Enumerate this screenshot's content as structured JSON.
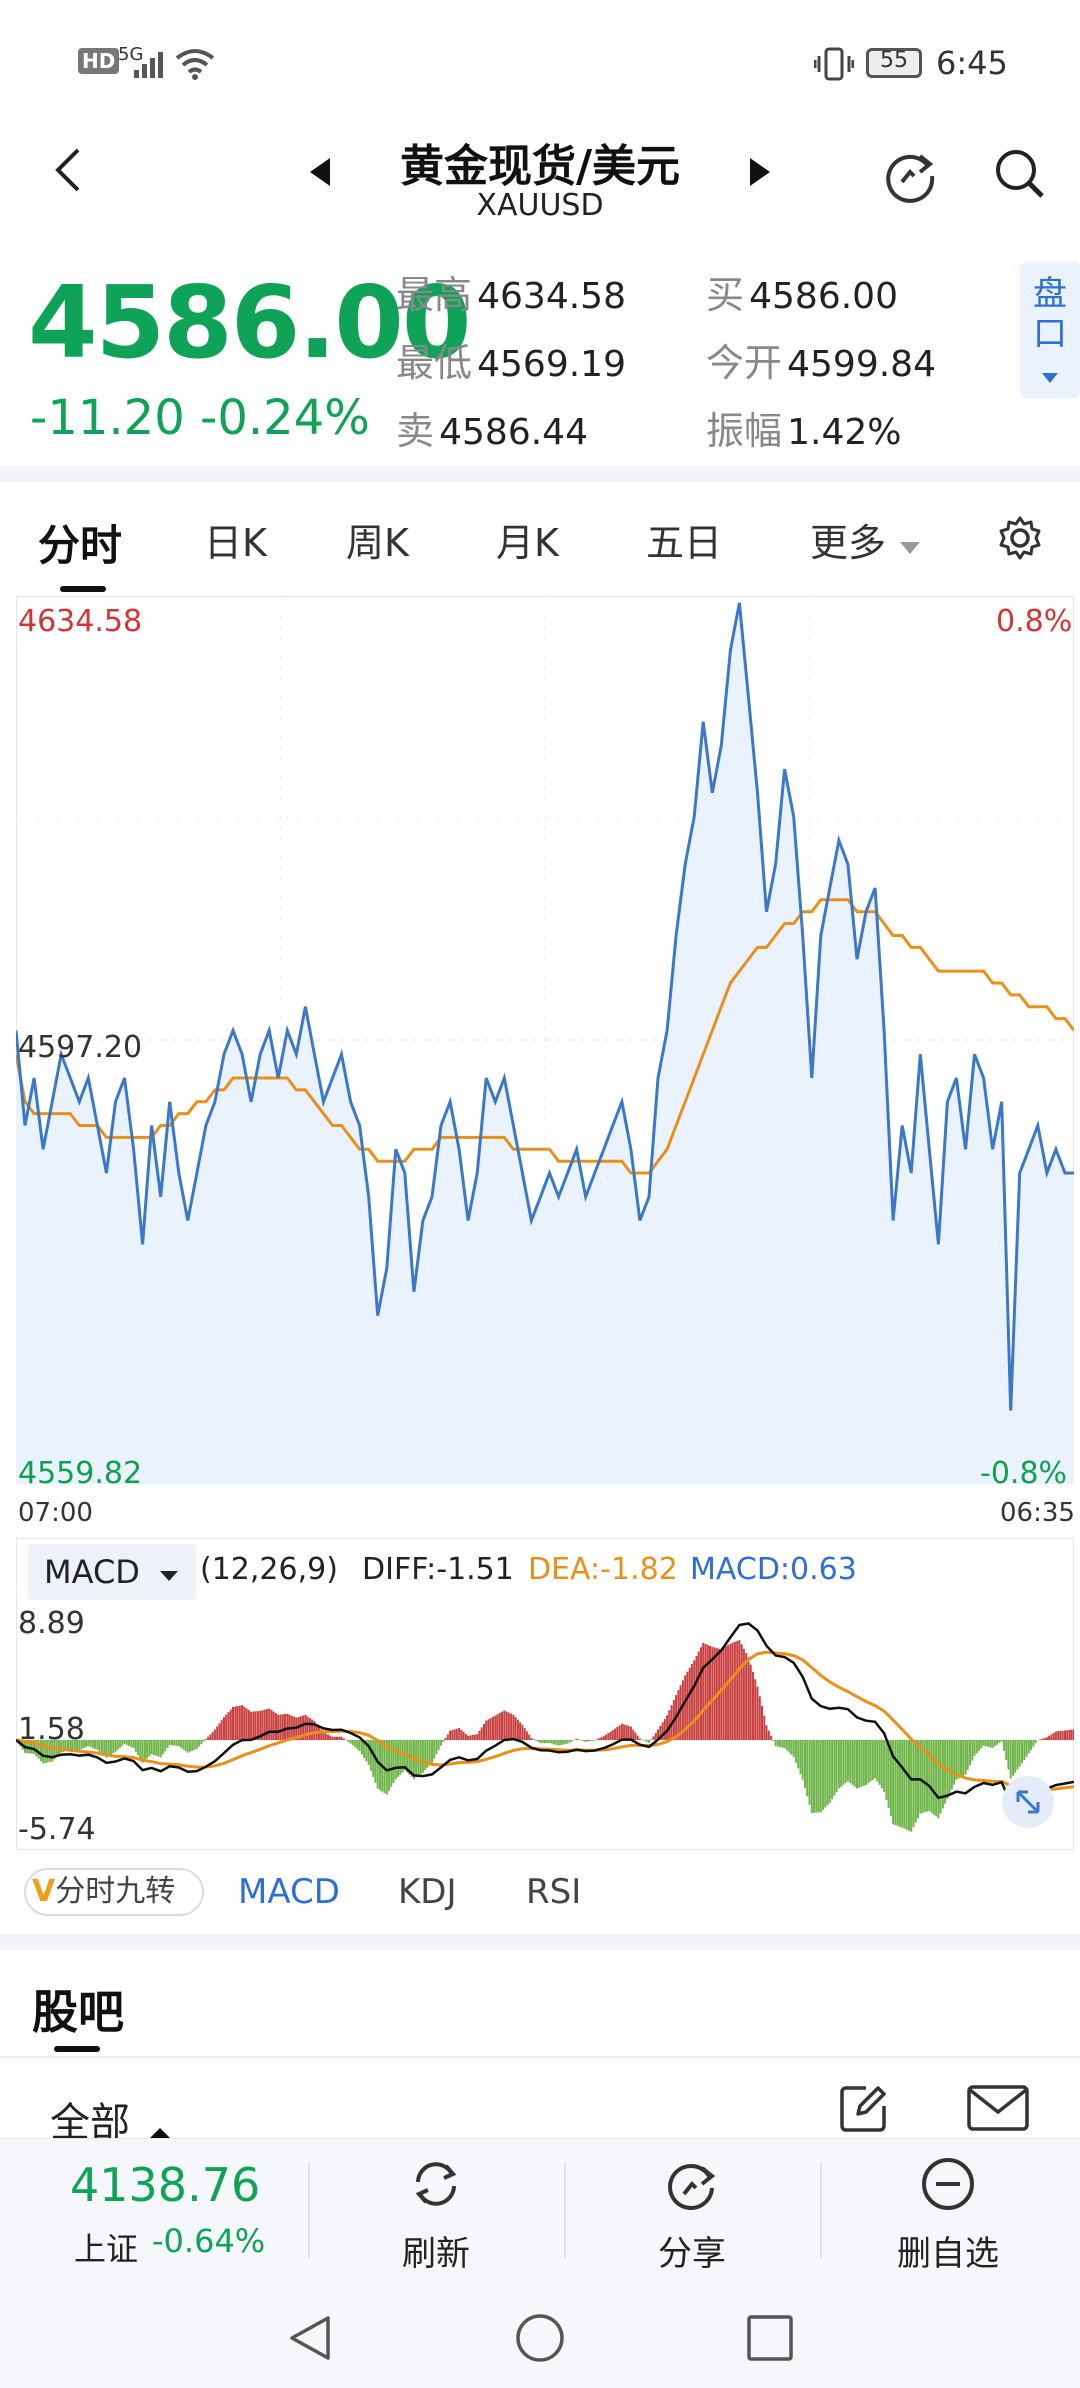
{
  "status_bar": {
    "hd": "HD",
    "network": "5G",
    "battery": "55",
    "time": "6:45"
  },
  "header": {
    "title": "黄金现货/美元",
    "subtitle": "XAUUSD"
  },
  "quote": {
    "price": "4586.00",
    "change": "-11.20",
    "change_pct": "-0.24%",
    "fields": [
      {
        "label": "最高",
        "value": "4634.58"
      },
      {
        "label": "最低",
        "value": "4569.19"
      },
      {
        "label": "卖",
        "value": "4586.44"
      },
      {
        "label": "买",
        "value": "4586.00"
      },
      {
        "label": "今开",
        "value": "4599.84"
      },
      {
        "label": "振幅",
        "value": "1.42%"
      }
    ],
    "pankou": [
      "盘",
      "口"
    ]
  },
  "tabs": [
    "分时",
    "日K",
    "周K",
    "月K",
    "五日",
    "更多"
  ],
  "chart": {
    "y_max_label": "4634.58",
    "y_mid_label": "4597.20",
    "y_min_label": "4559.82",
    "pct_max_label": "0.8%",
    "pct_min_label": "-0.8%",
    "time_start": "07:00",
    "time_end": "06:35",
    "colors": {
      "price": "#3a78cc",
      "avg": "#e8901a",
      "fill": "#eaf3fd"
    }
  },
  "macd": {
    "selector": "MACD",
    "params": "(12,26,9)",
    "diff": "DIFF:-1.51",
    "dea": "DEA:-1.82",
    "macd": "MACD:0.63",
    "y_max_label": "8.89",
    "y_mid_label": "1.58",
    "y_min_label": "-5.74"
  },
  "indicator_tabs": {
    "jiuzhuan": "分时九转",
    "v_badge": "V",
    "items": [
      "MACD",
      "KDJ",
      "RSI"
    ]
  },
  "guba": {
    "title": "股吧",
    "filter": "全部"
  },
  "bottom": {
    "index_value": "4138.76",
    "index_name": "上证",
    "index_pct": "-0.64%",
    "refresh": "刷新",
    "share": "分享",
    "remove": "删自选"
  },
  "chart_data": {
    "type": "line",
    "title": "",
    "xlabel": "",
    "ylabel": "",
    "x_range": [
      "07:00",
      "06:35"
    ],
    "ylim": [
      4559.82,
      4634.58
    ],
    "reference": 4597.2,
    "grid": true,
    "series": [
      {
        "values": [
          4598,
          4590,
          4594,
          4588,
          4592,
          4596,
          4594,
          4592,
          4594,
          4590,
          4586,
          4592,
          4594,
          4588,
          4580,
          4590,
          4584,
          4592,
          4586,
          4582,
          4586,
          4590,
          4592,
          4596,
          4598,
          4596,
          4592,
          4596,
          4598,
          4594,
          4598,
          4596,
          4600,
          4596,
          4592,
          4594,
          4596,
          4592,
          4590,
          4584,
          4574,
          4578,
          4588,
          4586,
          4576,
          4582,
          4584,
          4590,
          4592,
          4588,
          4582,
          4586,
          4594,
          4592,
          4594,
          4590,
          4586,
          4582,
          4584,
          4586,
          4584,
          4586,
          4588,
          4584,
          4586,
          4588,
          4590,
          4592,
          4588,
          4582,
          4584,
          4594,
          4598,
          4606,
          4612,
          4616,
          4624,
          4618,
          4622,
          4630,
          4634,
          4626,
          4618,
          4608,
          4612,
          4620,
          4616,
          4606,
          4594,
          4606,
          4610,
          4614,
          4612,
          4604,
          4608,
          4610,
          4598,
          4582,
          4590,
          4586,
          4596,
          4588,
          4580,
          4592,
          4594,
          4588,
          4596,
          4594,
          4588,
          4592,
          4566,
          4586,
          4588,
          4590,
          4586,
          4588,
          4586,
          4586
        ]
      },
      {
        "values": [
          4596,
          4592,
          4591,
          4591,
          4591,
          4591,
          4591,
          4590,
          4590,
          4590,
          4589,
          4589,
          4589,
          4589,
          4589,
          4589,
          4590,
          4590,
          4591,
          4591,
          4592,
          4592,
          4593,
          4593,
          4594,
          4594,
          4594,
          4594,
          4594,
          4594,
          4594,
          4593,
          4593,
          4592,
          4591,
          4590,
          4590,
          4589,
          4588,
          4588,
          4587,
          4587,
          4587,
          4587,
          4588,
          4588,
          4588,
          4589,
          4589,
          4589,
          4589,
          4589,
          4589,
          4589,
          4589,
          4588,
          4588,
          4588,
          4588,
          4588,
          4587,
          4587,
          4587,
          4587,
          4587,
          4587,
          4587,
          4587,
          4586,
          4586,
          4586,
          4587,
          4588,
          4590,
          4592,
          4594,
          4596,
          4598,
          4600,
          4602,
          4603,
          4604,
          4605,
          4605,
          4606,
          4607,
          4607,
          4608,
          4608,
          4609,
          4609,
          4609,
          4609,
          4608,
          4608,
          4608,
          4607,
          4606,
          4606,
          4605,
          4605,
          4604,
          4603,
          4603,
          4603,
          4603,
          4603,
          4603,
          4602,
          4602,
          4601,
          4601,
          4600,
          4600,
          4600,
          4599,
          4599,
          4598
        ]
      }
    ]
  }
}
